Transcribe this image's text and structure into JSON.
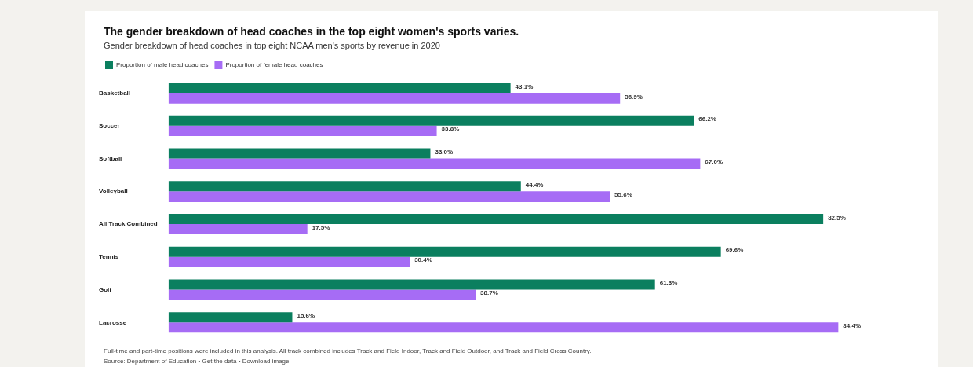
{
  "chart_data": {
    "type": "bar",
    "orientation": "horizontal",
    "title": "The gender breakdown of head coaches in the top eight women's sports varies.",
    "subtitle": "Gender breakdown of head coaches in top eight NCAA men's sports by revenue in 2020",
    "categories": [
      "Basketball",
      "Soccer",
      "Softball",
      "Volleyball",
      "All Track Combined",
      "Tennis",
      "Golf",
      "Lacrosse"
    ],
    "series": [
      {
        "name": "Proportion of male head coaches",
        "color": "#0b7f5f",
        "values": [
          43.1,
          66.2,
          33.0,
          44.4,
          82.5,
          69.6,
          61.3,
          15.6
        ],
        "value_labels": [
          "43.1%",
          "66.2%",
          "33.0%",
          "44.4%",
          "82.5%",
          "69.6%",
          "61.3%",
          "15.6%"
        ]
      },
      {
        "name": "Proportion of female head coaches",
        "color": "#a66cf5",
        "values": [
          56.9,
          33.8,
          67.0,
          55.6,
          17.5,
          30.4,
          38.7,
          84.4
        ],
        "value_labels": [
          "56.9%",
          "33.8%",
          "67.0%",
          "55.6%",
          "17.5%",
          "30.4%",
          "38.7%",
          "84.4%"
        ]
      }
    ],
    "legend": "top left",
    "tick_labels": "y",
    "annotations": [
      "Full-time and part-time positions were included in this analysis. All track combined includes Track and Field Indoor, Track and Field Outdoor, and Track and Field Cross Country.",
      "Source: Department of Education • Get the data • Download image"
    ]
  }
}
